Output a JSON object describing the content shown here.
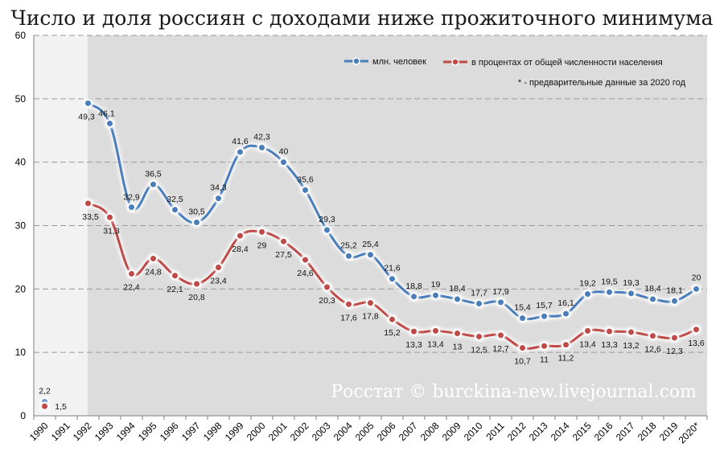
{
  "chart_data": {
    "type": "line",
    "title": "Число и доля россиян с доходами ниже прожиточного минимума",
    "x": [
      "1990",
      "1991",
      "1992",
      "1993",
      "1994",
      "1995",
      "1996",
      "1997",
      "1998",
      "1999",
      "2000",
      "2001",
      "2002",
      "2003",
      "2004",
      "2005",
      "2006",
      "2007",
      "2008",
      "2009",
      "2010",
      "2011",
      "2012",
      "2013",
      "2014",
      "2015",
      "2016",
      "2017",
      "2018",
      "2019",
      "2020*"
    ],
    "y_ticks": [
      "0",
      "10",
      "20",
      "30",
      "40",
      "50",
      "60"
    ],
    "ylim": [
      0,
      60
    ],
    "grid": true,
    "legend_position": "top-right",
    "note": "* - предварительные данные за 2020 год",
    "watermark": "Росстат © burckina-new.livejournal.com",
    "series": [
      {
        "name": "млн. человек",
        "color": "#4a7ebb",
        "values": [
          2.2,
          null,
          49.3,
          46.1,
          32.9,
          36.5,
          32.5,
          30.5,
          34.3,
          41.6,
          42.3,
          40,
          35.6,
          29.3,
          25.2,
          25.4,
          21.6,
          18.8,
          19,
          18.4,
          17.7,
          17.9,
          15.4,
          15.7,
          16.1,
          19.2,
          19.5,
          19.3,
          18.4,
          18.1,
          20
        ],
        "labels": [
          "2,2",
          "",
          "49,3",
          "46,1",
          "32,9",
          "36,5",
          "32,5",
          "30,5",
          "34,3",
          "41,6",
          "42,3",
          "40",
          "35,6",
          "29,3",
          "25,2",
          "25,4",
          "21,6",
          "18,8",
          "19",
          "18,4",
          "17,7",
          "17,9",
          "15,4",
          "15,7",
          "16,1",
          "19,2",
          "19,5",
          "19,3",
          "18,4",
          "18,1",
          "20"
        ]
      },
      {
        "name": "в процентах от общей численности населения",
        "color": "#be4b48",
        "values": [
          1.5,
          null,
          33.5,
          31.3,
          22.4,
          24.8,
          22.1,
          20.8,
          23.4,
          28.4,
          29,
          27.5,
          24.6,
          20.3,
          17.6,
          17.8,
          15.2,
          13.3,
          13.4,
          13,
          12.5,
          12.7,
          10.7,
          11,
          11.2,
          13.4,
          13.3,
          13.2,
          12.6,
          12.3,
          13.6
        ],
        "labels": [
          "1,5",
          "",
          "33,5",
          "31,3",
          "22,4",
          "24,8",
          "22,1",
          "20,8",
          "23,4",
          "28,4",
          "29",
          "27,5",
          "24,6",
          "20,3",
          "17,6",
          "17,8",
          "15,2",
          "13,3",
          "13,4",
          "13",
          "12,5",
          "12,7",
          "10,7",
          "11",
          "11,2",
          "13,4",
          "13,3",
          "13,2",
          "12,6",
          "12,3",
          "13,6"
        ]
      }
    ]
  }
}
